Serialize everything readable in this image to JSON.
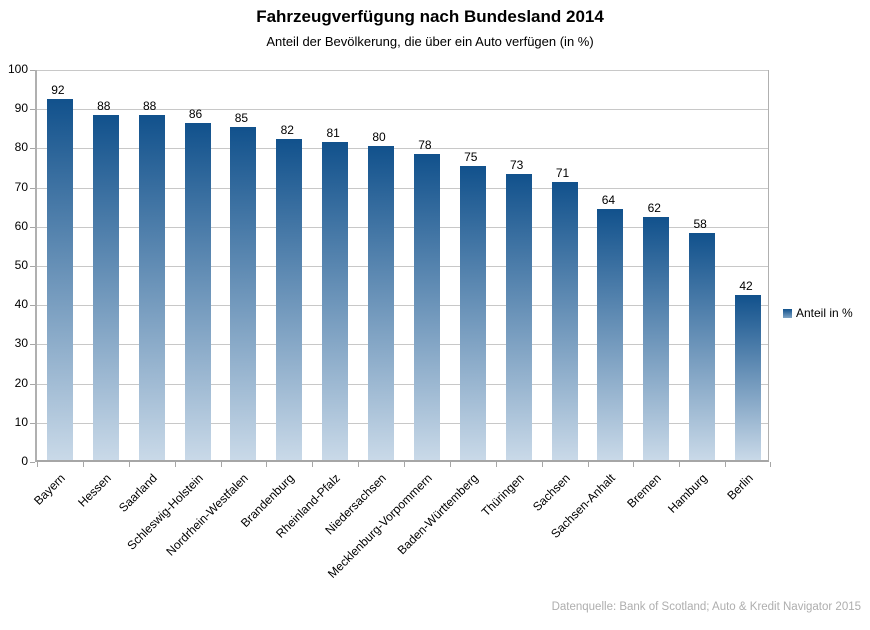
{
  "chart_data": {
    "type": "bar",
    "title": "Fahrzeugverfügung nach Bundesland 2014",
    "subtitle": "Anteil der Bevölkerung, die über ein Auto verfügen (in %)",
    "categories": [
      "Bayern",
      "Hessen",
      "Saarland",
      "Schleswig-Holstein",
      "Nordrhein-Westfalen",
      "Brandenburg",
      "Rheinland-Pfalz",
      "Niedersachsen",
      "Mecklenburg-Vorpommern",
      "Baden-Württemberg",
      "Thüringen",
      "Sachsen",
      "Sachsen-Anhalt",
      "Bremen",
      "Hamburg",
      "Berlin"
    ],
    "values": [
      92,
      88,
      88,
      86,
      85,
      82,
      81,
      80,
      78,
      75,
      73,
      71,
      64,
      62,
      58,
      42
    ],
    "ylim": [
      0,
      100
    ],
    "yticks": [
      0,
      10,
      20,
      30,
      40,
      50,
      60,
      70,
      80,
      90,
      100
    ],
    "grid": "horizontal",
    "legend_position": "right",
    "xlabel": "",
    "ylabel": ""
  },
  "legend": {
    "label": "Anteil in %"
  },
  "source": {
    "text": "Datenquelle: Bank of Scotland; Auto & Kredit Navigator 2015"
  },
  "colors": {
    "bar_top": "#11518c",
    "bar_bottom": "#c9d9e8",
    "gridline": "#c8c8c8",
    "axis": "#a6a6a6",
    "source_text": "#aeaeae"
  }
}
